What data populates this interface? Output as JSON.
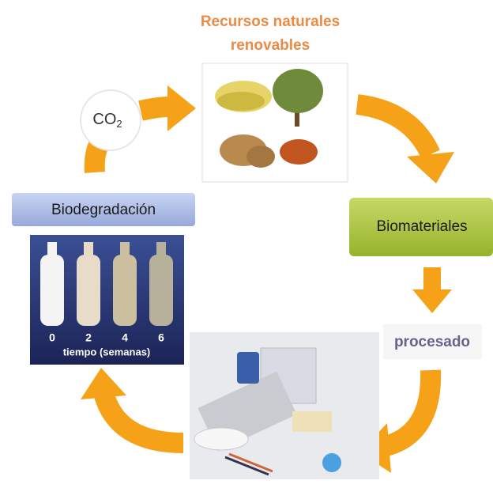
{
  "top_title": {
    "line1": "Recursos naturales",
    "line2": "renovables"
  },
  "co2": {
    "symbol": "CO",
    "subscript": "2"
  },
  "stages": {
    "biodegradation": "Biodegradación",
    "biomaterials": "Biomateriales",
    "processing": "procesado"
  },
  "biodegradation_photo": {
    "weeks": [
      0,
      2,
      4,
      6
    ],
    "axis_label": "tiempo (semanas)"
  }
}
